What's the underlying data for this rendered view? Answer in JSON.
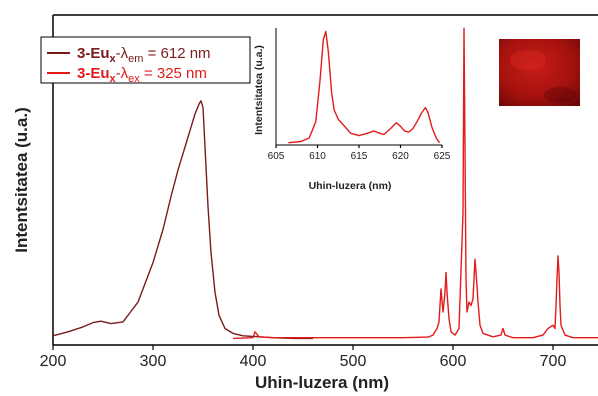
{
  "chart_data": [
    {
      "type": "line",
      "ylabel": "Intentsitatea (u.a.)",
      "xlabel": "Uhin-luzera (nm)",
      "xlim": [
        200,
        745
      ],
      "ylim": [
        0,
        1
      ],
      "xticks": [
        "200",
        "300",
        "400",
        "500",
        "600",
        "700"
      ],
      "legend": {
        "placement": "top-left"
      },
      "series": [
        {
          "name_prefix": "3-Eu",
          "name_sub": "x",
          "name_dash": "-λ",
          "name_sub2": "em",
          "name_suffix": " = 612 nm",
          "color": "#7a1c1c",
          "x": [
            200,
            215,
            230,
            240,
            248,
            258,
            270,
            285,
            300,
            310,
            318,
            325,
            332,
            338,
            342,
            346,
            348,
            350,
            352,
            355,
            358,
            362,
            366,
            372,
            380,
            390,
            400,
            420,
            440,
            460
          ],
          "y": [
            0.028,
            0.04,
            0.055,
            0.068,
            0.072,
            0.065,
            0.07,
            0.13,
            0.25,
            0.35,
            0.45,
            0.53,
            0.6,
            0.66,
            0.7,
            0.73,
            0.74,
            0.72,
            0.6,
            0.42,
            0.28,
            0.16,
            0.09,
            0.05,
            0.035,
            0.028,
            0.026,
            0.022,
            0.02,
            0.02
          ]
        },
        {
          "name_prefix": "3-Eu",
          "name_sub": "x",
          "name_dash": "-λ",
          "name_sub2": "ex",
          "name_suffix": " = 325 nm",
          "color": "#e31b1b",
          "x": [
            380,
            400,
            402,
            406,
            420,
            450,
            500,
            550,
            575,
            580,
            584,
            586,
            588,
            590,
            592,
            593,
            594,
            595,
            596,
            598,
            602,
            606,
            610,
            611,
            612,
            613,
            614,
            616,
            618,
            620,
            622,
            623,
            624,
            625,
            627,
            630,
            640,
            648,
            650,
            652,
            660,
            680,
            690,
            695,
            700,
            702,
            703,
            704,
            705,
            706,
            707,
            708,
            712,
            720,
            745
          ],
          "y": [
            0.02,
            0.022,
            0.04,
            0.025,
            0.022,
            0.022,
            0.022,
            0.022,
            0.024,
            0.03,
            0.05,
            0.07,
            0.17,
            0.1,
            0.16,
            0.22,
            0.16,
            0.12,
            0.08,
            0.04,
            0.03,
            0.05,
            0.4,
            0.96,
            0.6,
            0.2,
            0.1,
            0.13,
            0.12,
            0.14,
            0.26,
            0.22,
            0.18,
            0.13,
            0.06,
            0.035,
            0.025,
            0.03,
            0.05,
            0.03,
            0.022,
            0.022,
            0.03,
            0.05,
            0.06,
            0.05,
            0.12,
            0.2,
            0.27,
            0.22,
            0.12,
            0.06,
            0.03,
            0.022,
            0.022
          ]
        }
      ]
    },
    {
      "type": "line",
      "ylabel": "Intentsitatea (u.a.)",
      "xlabel": "Uhin-luzera (nm)",
      "xlim": [
        605,
        625
      ],
      "ylim": [
        0,
        1
      ],
      "xticks": [
        "605",
        "610",
        "615",
        "620",
        "625"
      ],
      "series": [
        {
          "color": "#e31b1b",
          "x": [
            606.5,
            608,
            609,
            609.8,
            610.3,
            610.7,
            611,
            611.3,
            611.7,
            612,
            612.5,
            613,
            613.5,
            614,
            615,
            616,
            616.8,
            617.5,
            618,
            618.8,
            619.5,
            620,
            620.5,
            621,
            621.5,
            622,
            622.5,
            623,
            623.3,
            623.8,
            624.3,
            624.7
          ],
          "y": [
            0.02,
            0.03,
            0.06,
            0.2,
            0.55,
            0.9,
            0.97,
            0.8,
            0.45,
            0.3,
            0.22,
            0.18,
            0.14,
            0.1,
            0.08,
            0.1,
            0.12,
            0.1,
            0.09,
            0.14,
            0.19,
            0.16,
            0.12,
            0.11,
            0.14,
            0.2,
            0.27,
            0.32,
            0.28,
            0.15,
            0.06,
            0.02
          ]
        }
      ]
    }
  ]
}
